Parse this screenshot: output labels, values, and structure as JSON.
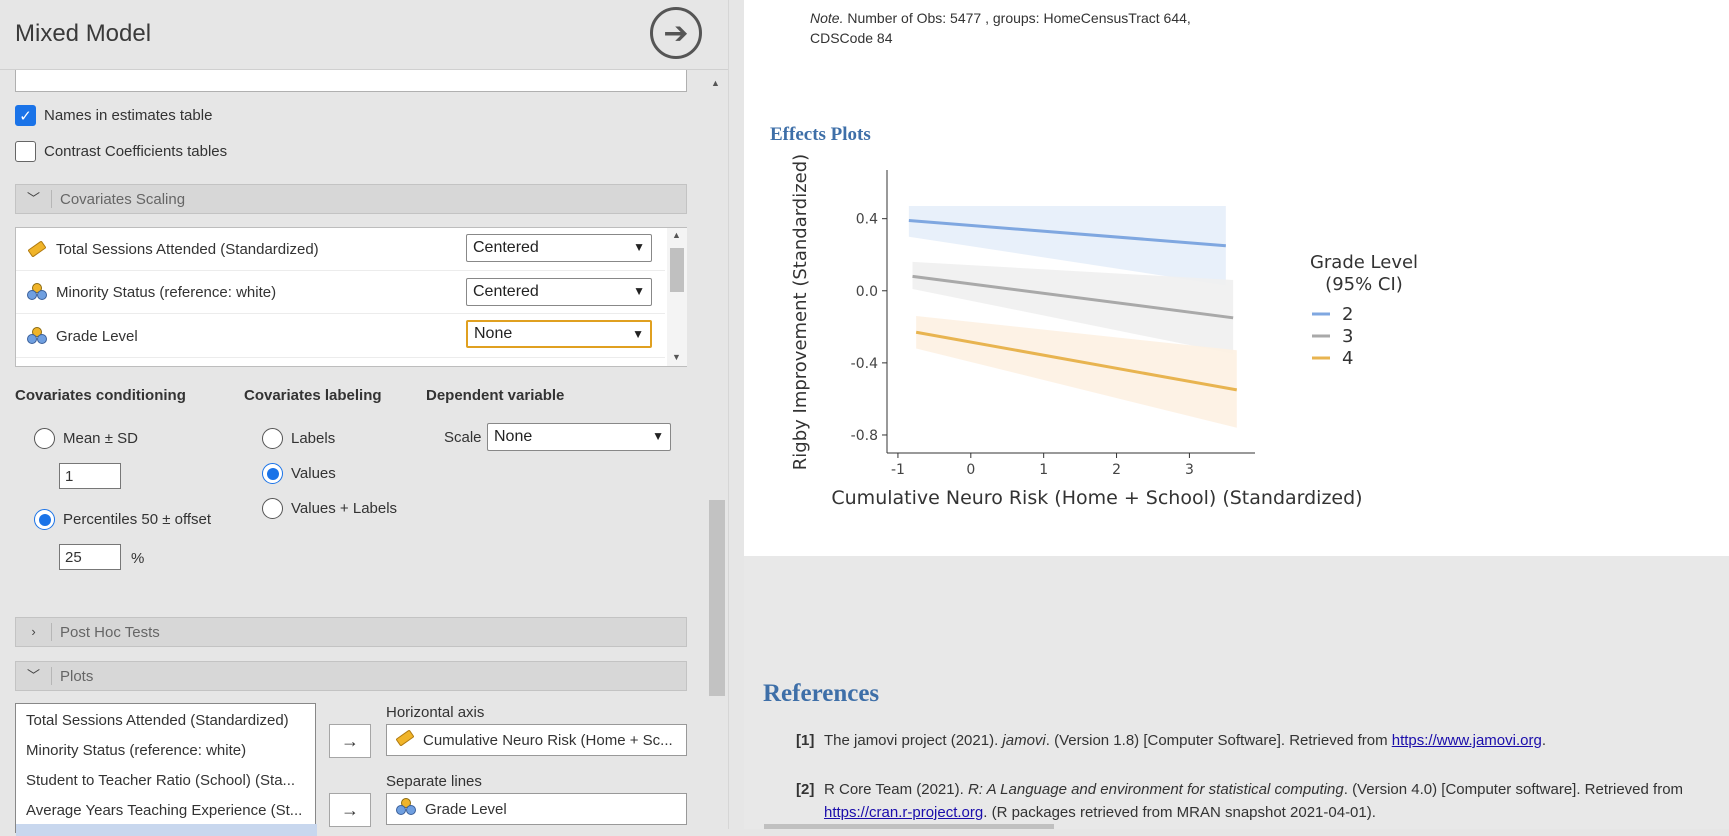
{
  "left_panel": {
    "title": "Mixed Model",
    "checkboxes": [
      {
        "label": "Names in estimates table",
        "checked": true
      },
      {
        "label": "Contrast Coefficients tables",
        "checked": false
      }
    ],
    "covariates_scaling": {
      "section_label": "Covariates Scaling",
      "rows": [
        {
          "name": "Total Sessions Attended (Standardized)",
          "icon": "ruler-icon",
          "value": "Centered"
        },
        {
          "name": "Minority Status (reference: white)",
          "icon": "nominal-variable-icon",
          "value": "Centered"
        },
        {
          "name": "Grade Level",
          "icon": "nominal-variable-icon",
          "value": "None"
        }
      ]
    },
    "covariates_conditioning": {
      "heading": "Covariates conditioning",
      "mean_sd_label": "Mean ± SD",
      "mean_sd_value": "1",
      "percentiles_label": "Percentiles 50 ± offset",
      "percentiles_value": "25",
      "percent_sign": "%",
      "selected": "percentiles"
    },
    "covariates_labeling": {
      "heading": "Covariates labeling",
      "options": [
        "Labels",
        "Values",
        "Values + Labels"
      ],
      "selected": "Values"
    },
    "dependent_variable": {
      "heading": "Dependent variable",
      "scale_label": "Scale",
      "scale_value": "None"
    },
    "post_hoc_label": "Post Hoc Tests",
    "plots": {
      "section_label": "Plots",
      "variables": [
        "Total Sessions Attended (Standardized)",
        "Minority Status (reference: white)",
        "Student to Teacher Ratio (School) (Sta...",
        "Average Years Teaching Experience (St..."
      ],
      "horizontal_axis_label": "Horizontal axis",
      "horizontal_axis_value": "Cumulative Neuro Risk (Home + Sc...",
      "separate_lines_label": "Separate lines",
      "separate_lines_value": "Grade Level",
      "arrow": "→"
    }
  },
  "results": {
    "note_label": "Note.",
    "note_text": " Number of Obs: 5477 , groups: HomeCensusTract 644, CDSCode 84",
    "effects_title": "Effects Plots",
    "references_title": "References",
    "references": [
      {
        "num": "[1]",
        "pre": "The jamovi project (2021). ",
        "italic": "jamovi",
        "post": ". (Version 1.8) [Computer Software]. Retrieved from ",
        "link": "https://www.jamovi.org",
        "tail": "."
      },
      {
        "num": "[2]",
        "pre": "R Core Team (2021). ",
        "italic": "R: A Language and environment for statistical computing",
        "post": ". (Version 4.0) [Computer software]. Retrieved from ",
        "link": "https://cran.r-project.org",
        "tail": ". (R packages retrieved from MRAN snapshot 2021-04-01)."
      }
    ]
  },
  "chart_data": {
    "type": "line",
    "title": "",
    "xlabel": "Cumulative Neuro Risk (Home + School) (Standardized)",
    "ylabel": "Rigby Improvement (Standardized)",
    "xlim": [
      -1.15,
      3.9
    ],
    "ylim": [
      -0.9,
      0.67
    ],
    "xticks": [
      -1,
      0,
      1,
      2,
      3
    ],
    "xtick_labels": [
      "-1",
      "0",
      "1",
      "2",
      "3"
    ],
    "yticks": [
      0.4,
      0.0,
      -0.4,
      -0.8
    ],
    "ytick_labels": [
      "0.4",
      "0.0",
      "-0.4",
      "-0.8"
    ],
    "legend_title": "Grade Level\n(95% CI)",
    "legend_position": "right",
    "series": [
      {
        "name": "2",
        "color": "#7fa7e0",
        "band_color": "#e6eefa",
        "x": [
          -0.85,
          3.5
        ],
        "y": [
          0.39,
          0.25
        ],
        "ci_lower": [
          0.3,
          0.03
        ],
        "ci_upper": [
          0.47,
          0.47
        ]
      },
      {
        "name": "3",
        "color": "#a9a9a9",
        "band_color": "#f0f0f0",
        "x": [
          -0.8,
          3.6
        ],
        "y": [
          0.08,
          -0.15
        ],
        "ci_lower": [
          0.01,
          -0.35
        ],
        "ci_upper": [
          0.16,
          0.06
        ]
      },
      {
        "name": "4",
        "color": "#e8b450",
        "band_color": "#fdf1e2",
        "x": [
          -0.75,
          3.65
        ],
        "y": [
          -0.23,
          -0.55
        ],
        "ci_lower": [
          -0.32,
          -0.76
        ],
        "ci_upper": [
          -0.14,
          -0.33
        ]
      }
    ]
  }
}
